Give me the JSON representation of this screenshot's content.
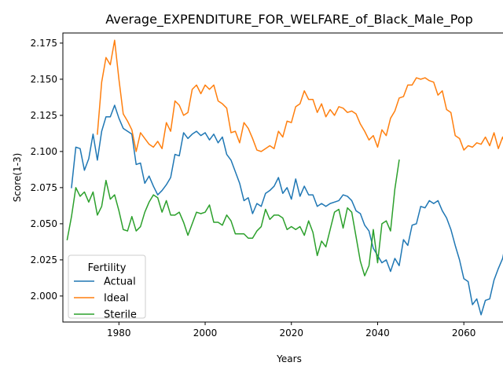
{
  "chart_data": {
    "type": "line",
    "title": "Average_EXPENDITURE_FOR_WELFARE_of_Black_Male_Pop",
    "xlabel": "Years",
    "ylabel": "Score(1-3)",
    "xlim": [
      1967,
      2072
    ],
    "ylim": [
      1.982,
      2.182
    ],
    "xticks": [
      1980,
      2000,
      2020,
      2040,
      2060
    ],
    "yticks": [
      2.0,
      2.025,
      2.05,
      2.075,
      2.1,
      2.125,
      2.15,
      2.175
    ],
    "ytick_labels": [
      "2.000",
      "2.025",
      "2.050",
      "2.075",
      "2.100",
      "2.125",
      "2.150",
      "2.175"
    ],
    "grid": false,
    "legend": {
      "title": "Fertility",
      "position": "lower-left"
    },
    "series": [
      {
        "name": "Actual",
        "color": "#1f77b4",
        "x": [
          1969,
          1970,
          1971,
          1972,
          1973,
          1974,
          1975,
          1976,
          1977,
          1978,
          1979,
          1980,
          1981,
          1982,
          1983,
          1984,
          1985,
          1986,
          1987,
          1988,
          1989,
          1990,
          1991,
          1992,
          1993,
          1994,
          1995,
          1996,
          1997,
          1998,
          1999,
          2000,
          2001,
          2002,
          2003,
          2004,
          2005,
          2006,
          2007,
          2008,
          2009,
          2010,
          2011,
          2012,
          2013,
          2014,
          2015,
          2016,
          2017,
          2018,
          2019,
          2020,
          2021,
          2022,
          2023,
          2024,
          2025,
          2026,
          2027,
          2028,
          2029,
          2030,
          2031,
          2032,
          2033,
          2034,
          2035,
          2036,
          2037,
          2038,
          2039,
          2040,
          2041,
          2042,
          2043,
          2044,
          2045,
          2046,
          2047,
          2048,
          2049,
          2050,
          2051,
          2052,
          2053,
          2054,
          2055,
          2056,
          2057,
          2058,
          2059,
          2060,
          2061,
          2062,
          2063,
          2064,
          2065,
          2066,
          2067,
          2068,
          2069,
          2070
        ],
        "values": [
          2.075,
          2.103,
          2.102,
          2.087,
          2.095,
          2.112,
          2.094,
          2.114,
          2.124,
          2.124,
          2.132,
          2.123,
          2.116,
          2.114,
          2.112,
          2.091,
          2.092,
          2.078,
          2.083,
          2.076,
          2.07,
          2.073,
          2.077,
          2.082,
          2.098,
          2.097,
          2.113,
          2.109,
          2.112,
          2.114,
          2.111,
          2.113,
          2.108,
          2.112,
          2.106,
          2.11,
          2.098,
          2.094,
          2.086,
          2.078,
          2.066,
          2.068,
          2.057,
          2.064,
          2.062,
          2.071,
          2.073,
          2.076,
          2.082,
          2.071,
          2.075,
          2.067,
          2.081,
          2.069,
          2.076,
          2.07,
          2.07,
          2.062,
          2.064,
          2.062,
          2.064,
          2.065,
          2.066,
          2.07,
          2.069,
          2.066,
          2.059,
          2.057,
          2.049,
          2.045,
          2.033,
          2.028,
          2.023,
          2.025,
          2.017,
          2.026,
          2.021,
          2.039,
          2.035,
          2.049,
          2.05,
          2.062,
          2.061,
          2.066,
          2.064,
          2.066,
          2.059,
          2.054,
          2.046,
          2.035,
          2.025,
          2.012,
          2.01,
          1.994,
          1.998,
          1.987,
          1.997,
          1.998,
          2.011,
          2.019,
          2.026,
          2.041
        ]
      },
      {
        "name": "Ideal",
        "color": "#ff7f0e",
        "x": [
          1975,
          1976,
          1977,
          1978,
          1979,
          1980,
          1981,
          1982,
          1983,
          1984,
          1985,
          1986,
          1987,
          1988,
          1989,
          1990,
          1991,
          1992,
          1993,
          1994,
          1995,
          1996,
          1997,
          1998,
          1999,
          2000,
          2001,
          2002,
          2003,
          2004,
          2005,
          2006,
          2007,
          2008,
          2009,
          2010,
          2011,
          2012,
          2013,
          2014,
          2015,
          2016,
          2017,
          2018,
          2019,
          2020,
          2021,
          2022,
          2023,
          2024,
          2025,
          2026,
          2027,
          2028,
          2029,
          2030,
          2031,
          2032,
          2033,
          2034,
          2035,
          2036,
          2037,
          2038,
          2039,
          2040,
          2041,
          2042,
          2043,
          2044,
          2045,
          2046,
          2047,
          2048,
          2049,
          2050,
          2051,
          2052,
          2053,
          2054,
          2055,
          2056,
          2057,
          2058,
          2059,
          2060,
          2061,
          2062,
          2063,
          2064,
          2065,
          2066,
          2067,
          2068,
          2069,
          2070
        ],
        "values": [
          2.112,
          2.148,
          2.165,
          2.16,
          2.177,
          2.15,
          2.126,
          2.121,
          2.115,
          2.1,
          2.113,
          2.109,
          2.105,
          2.103,
          2.107,
          2.102,
          2.12,
          2.114,
          2.135,
          2.132,
          2.125,
          2.127,
          2.143,
          2.146,
          2.14,
          2.146,
          2.143,
          2.146,
          2.135,
          2.133,
          2.13,
          2.113,
          2.114,
          2.106,
          2.12,
          2.116,
          2.109,
          2.101,
          2.1,
          2.102,
          2.104,
          2.102,
          2.114,
          2.11,
          2.121,
          2.12,
          2.131,
          2.133,
          2.142,
          2.136,
          2.136,
          2.127,
          2.133,
          2.124,
          2.129,
          2.125,
          2.131,
          2.13,
          2.127,
          2.128,
          2.126,
          2.119,
          2.114,
          2.108,
          2.111,
          2.103,
          2.115,
          2.111,
          2.123,
          2.128,
          2.137,
          2.138,
          2.146,
          2.146,
          2.151,
          2.15,
          2.151,
          2.149,
          2.148,
          2.139,
          2.142,
          2.129,
          2.127,
          2.111,
          2.109,
          2.101,
          2.104,
          2.103,
          2.106,
          2.105,
          2.11,
          2.104,
          2.113,
          2.102,
          2.11,
          2.101
        ]
      },
      {
        "name": "Sterile",
        "color": "#2ca02c",
        "x": [
          1968,
          1969,
          1970,
          1971,
          1972,
          1973,
          1974,
          1975,
          1976,
          1977,
          1978,
          1979,
          1980,
          1981,
          1982,
          1983,
          1984,
          1985,
          1986,
          1987,
          1988,
          1989,
          1990,
          1991,
          1992,
          1993,
          1994,
          1995,
          1996,
          1997,
          1998,
          1999,
          2000,
          2001,
          2002,
          2003,
          2004,
          2005,
          2006,
          2007,
          2008,
          2009,
          2010,
          2011,
          2012,
          2013,
          2014,
          2015,
          2016,
          2017,
          2018,
          2019,
          2020,
          2021,
          2022,
          2023,
          2024,
          2025,
          2026,
          2027,
          2028,
          2029,
          2030,
          2031,
          2032,
          2033,
          2034,
          2035,
          2036,
          2037,
          2038,
          2039,
          2040,
          2041,
          2042,
          2043,
          2044,
          2045
        ],
        "values": [
          2.039,
          2.055,
          2.075,
          2.069,
          2.072,
          2.065,
          2.072,
          2.056,
          2.062,
          2.08,
          2.067,
          2.07,
          2.059,
          2.046,
          2.045,
          2.055,
          2.045,
          2.048,
          2.058,
          2.065,
          2.07,
          2.068,
          2.058,
          2.066,
          2.056,
          2.056,
          2.058,
          2.051,
          2.042,
          2.05,
          2.058,
          2.057,
          2.058,
          2.063,
          2.051,
          2.051,
          2.049,
          2.056,
          2.052,
          2.043,
          2.043,
          2.043,
          2.04,
          2.04,
          2.045,
          2.048,
          2.06,
          2.053,
          2.056,
          2.056,
          2.054,
          2.046,
          2.048,
          2.046,
          2.048,
          2.042,
          2.052,
          2.044,
          2.028,
          2.038,
          2.034,
          2.046,
          2.058,
          2.06,
          2.047,
          2.061,
          2.058,
          2.041,
          2.024,
          2.014,
          2.021,
          2.046,
          2.023,
          2.05,
          2.052,
          2.045,
          2.074,
          2.094
        ]
      }
    ]
  }
}
